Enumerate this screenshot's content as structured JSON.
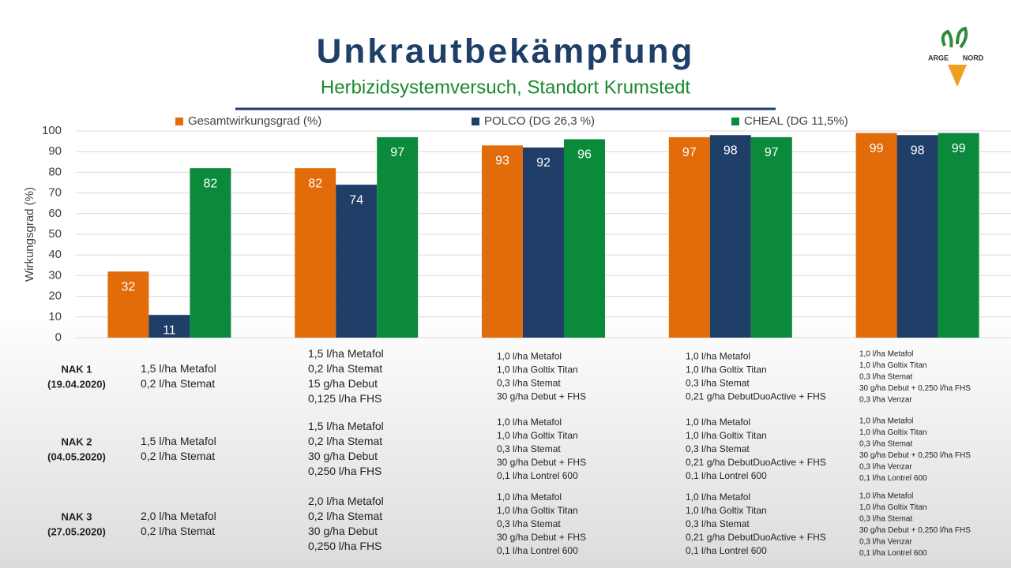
{
  "chart_data": {
    "type": "bar",
    "title": "Unkrautbekämpfung",
    "subtitle": "Herbizidsystemversuch, Standort Krumstedt",
    "y_label": "Wirkungsgrad (%)",
    "categories": [
      null,
      null,
      null,
      null,
      null
    ],
    "series": [
      {
        "name": "Gesamtwirkungsgrad (%)",
        "color": "#e36c0a",
        "values": [
          32,
          82,
          93,
          97,
          99
        ]
      },
      {
        "name": "POLCO (DG 26,3 %)",
        "color": "#1f3e68",
        "values": [
          11,
          74,
          92,
          98,
          98
        ]
      },
      {
        "name": "CHEAL (DG 11,5%)",
        "color": "#0b8a3b",
        "values": [
          82,
          97,
          96,
          97,
          99
        ]
      }
    ],
    "ylim": [
      0,
      100
    ],
    "yticks": [
      0,
      10,
      20,
      30,
      40,
      50,
      60,
      70,
      80,
      90,
      100
    ],
    "grid": true,
    "legend": "top"
  },
  "logo": {
    "left": "ARGE",
    "right": "NORD"
  },
  "table": {
    "rows": [
      {
        "label": [
          "NAK 1",
          "(19.04.2020)"
        ],
        "cells": [
          [
            "1,5 l/ha Metafol",
            "0,2 l/ha Stemat"
          ],
          [
            "1,5 l/ha Metafol",
            "0,2 l/ha Stemat",
            "15 g/ha Debut",
            "0,125 l/ha FHS"
          ],
          [
            "1,0 l/ha Metafol",
            "1,0 l/ha Goltix Titan",
            "0,3 l/ha Stemat",
            "30 g/ha Debut + FHS"
          ],
          [
            "1,0 l/ha Metafol",
            "1,0 l/ha Goltix Titan",
            "0,3 l/ha Stemat",
            "0,21 g/ha DebutDuoActive + FHS"
          ],
          [
            "1,0 l/ha Metafol",
            "1,0 l/ha Goltix Titan",
            "0,3 l/ha Stemat",
            "30 g/ha Debut + 0,250 l/ha FHS",
            "0,3 l/ha Venzar"
          ]
        ]
      },
      {
        "label": [
          "NAK 2",
          "(04.05.2020)"
        ],
        "cells": [
          [
            "1,5 l/ha Metafol",
            "0,2 l/ha Stemat"
          ],
          [
            "1,5 l/ha Metafol",
            "0,2 l/ha Stemat",
            "30 g/ha Debut",
            "0,250 l/ha FHS"
          ],
          [
            "1,0 l/ha Metafol",
            "1,0 l/ha Goltix Titan",
            "0,3 l/ha Stemat",
            "30 g/ha Debut + FHS",
            "0,1 l/ha Lontrel 600"
          ],
          [
            "1,0 l/ha Metafol",
            "1,0 l/ha Goltix Titan",
            "0,3 l/ha Stemat",
            "0,21 g/ha DebutDuoActive + FHS",
            "0,1 l/ha Lontrel 600"
          ],
          [
            "1,0 l/ha Metafol",
            "1,0 l/ha Goltix Titan",
            "0,3 l/ha Stemat",
            "30 g/ha Debut + 0,250 l/ha FHS",
            "0,3 l/ha Venzar",
            "0,1 l/ha Lontrel 600"
          ]
        ]
      },
      {
        "label": [
          "NAK 3",
          "(27.05.2020)"
        ],
        "cells": [
          [
            "2,0 l/ha Metafol",
            "0,2 l/ha Stemat"
          ],
          [
            "2,0 l/ha Metafol",
            "0,2 l/ha Stemat",
            "30 g/ha Debut",
            "0,250 l/ha FHS"
          ],
          [
            "1,0 l/ha Metafol",
            "1,0 l/ha Goltix Titan",
            "0,3 l/ha Stemat",
            "30 g/ha Debut + FHS",
            "0,1 l/ha Lontrel 600"
          ],
          [
            "1,0 l/ha Metafol",
            "1,0 l/ha Goltix Titan",
            "0,3 l/ha Stemat",
            "0,21 g/ha DebutDuoActive + FHS",
            "0,1 l/ha Lontrel 600"
          ],
          [
            "1,0 l/ha Metafol",
            "1,0 l/ha Goltix Titan",
            "0,3 l/ha Stemat",
            "30 g/ha Debut + 0,250 l/ha FHS",
            "0,3 l/ha Venzar",
            "0,1 l/ha Lontrel 600"
          ]
        ]
      }
    ]
  }
}
